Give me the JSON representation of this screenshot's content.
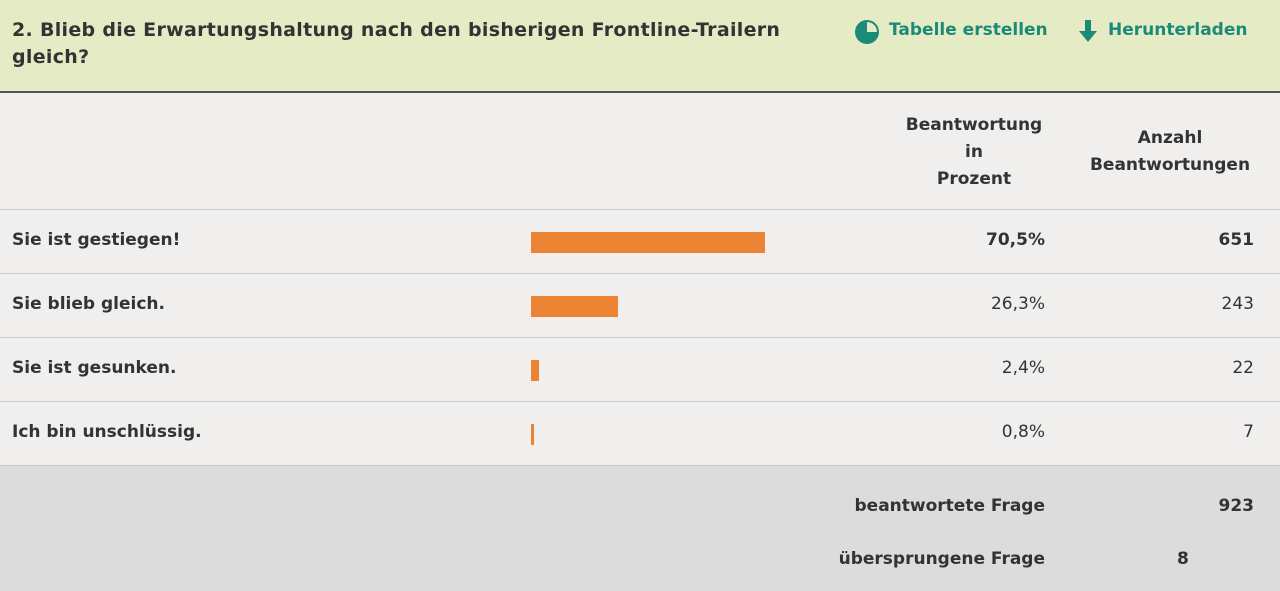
{
  "header": {
    "title": "2. Blieb die Erwartungshaltung nach den bisherigen Frontline-Trailern gleich?",
    "actions": [
      "Tabelle erstellen",
      "Herunterladen"
    ]
  },
  "table": {
    "columns": [
      [
        "Beantwortung",
        "in",
        "Prozent"
      ],
      [
        "Anzahl",
        "Beantwortungen"
      ]
    ],
    "rows": [
      {
        "label": "Sie ist gestiegen!",
        "percent": 70.5,
        "percent_label": "70,5%",
        "count": 651
      },
      {
        "label": "Sie blieb gleich.",
        "percent": 26.3,
        "percent_label": "26,3%",
        "count": 243
      },
      {
        "label": "Sie ist gesunken.",
        "percent": 2.4,
        "percent_label": "2,4%",
        "count": 22
      },
      {
        "label": "Ich bin unschlüssig.",
        "percent": 0.8,
        "percent_label": "0,8%",
        "count": 7
      }
    ]
  },
  "footer": {
    "answered_label": "beantwortete Frage",
    "answered": 923,
    "skipped_label": "übersprungene Frage",
    "skipped": 8
  }
}
